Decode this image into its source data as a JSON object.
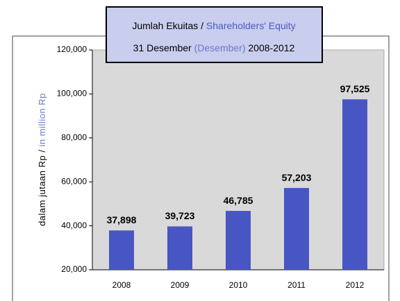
{
  "chart_data": {
    "type": "bar",
    "title_lines": [
      [
        {
          "text": "Jumlah Ekuitas /",
          "color": "#000000"
        },
        {
          "text": "Shareholders' Equity",
          "color": "#4a5bc4"
        }
      ],
      [
        {
          "text": "31 Desember",
          "color": "#000000"
        },
        {
          "text": "(Desember)",
          "color": "#6a78cc"
        },
        {
          "text": "2008-2012",
          "color": "#000000"
        }
      ]
    ],
    "ylabel_parts": [
      {
        "text": "dalam jutaan Rp /",
        "color": "#000000"
      },
      {
        "text": "in million Rp",
        "color": "#6a78cc"
      }
    ],
    "categories": [
      "2008",
      "2009",
      "2010",
      "2011",
      "2012"
    ],
    "values": [
      37898,
      39723,
      46785,
      57203,
      97525
    ],
    "value_labels": [
      "37,898",
      "39,723",
      "46,785",
      "57,203",
      "97,525"
    ],
    "color": "#4756c2",
    "ylim": [
      20000,
      120000
    ],
    "yticks": [
      {
        "value": 20000,
        "label": "20,000"
      },
      {
        "value": 40000,
        "label": "40,000"
      },
      {
        "value": 60000,
        "label": "60,000"
      },
      {
        "value": 80000,
        "label": "80,000"
      },
      {
        "value": 100000,
        "label": "100,000"
      },
      {
        "value": 120000,
        "label": "120,000"
      }
    ],
    "grid": false
  }
}
